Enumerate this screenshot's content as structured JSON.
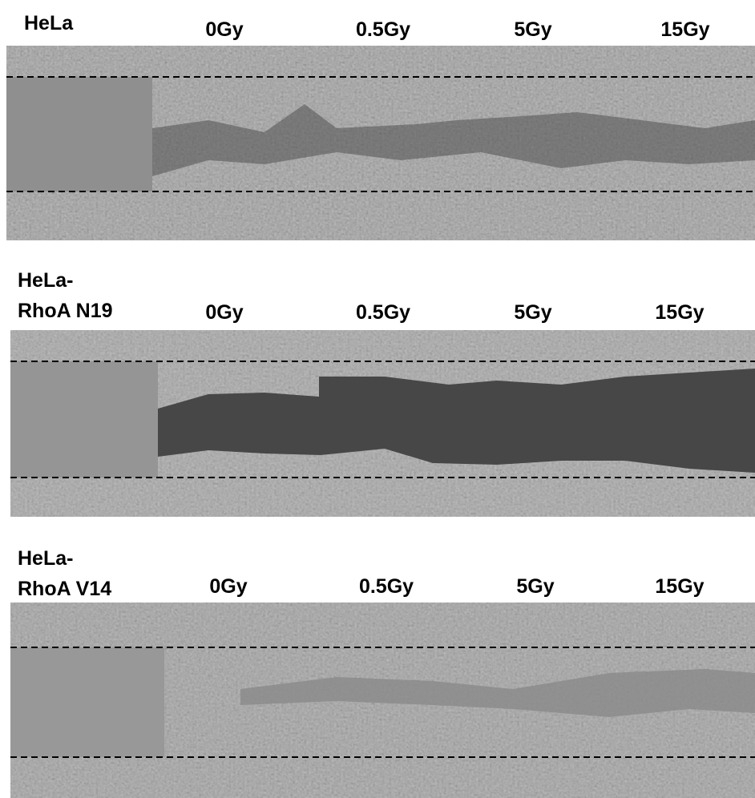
{
  "panels": [
    {
      "title": [
        "HeLa"
      ],
      "columns": [
        "0Gy",
        "0.5Gy",
        "5Gy",
        "15Gy"
      ]
    },
    {
      "title": [
        "HeLa-",
        "RhoA N19"
      ],
      "columns": [
        "0Gy",
        "0.5Gy",
        "5Gy",
        "15Gy"
      ]
    },
    {
      "title": [
        "HeLa-",
        "RhoA V14"
      ],
      "columns": [
        "0Gy",
        "0.5Gy",
        "5Gy",
        "15Gy"
      ]
    }
  ]
}
